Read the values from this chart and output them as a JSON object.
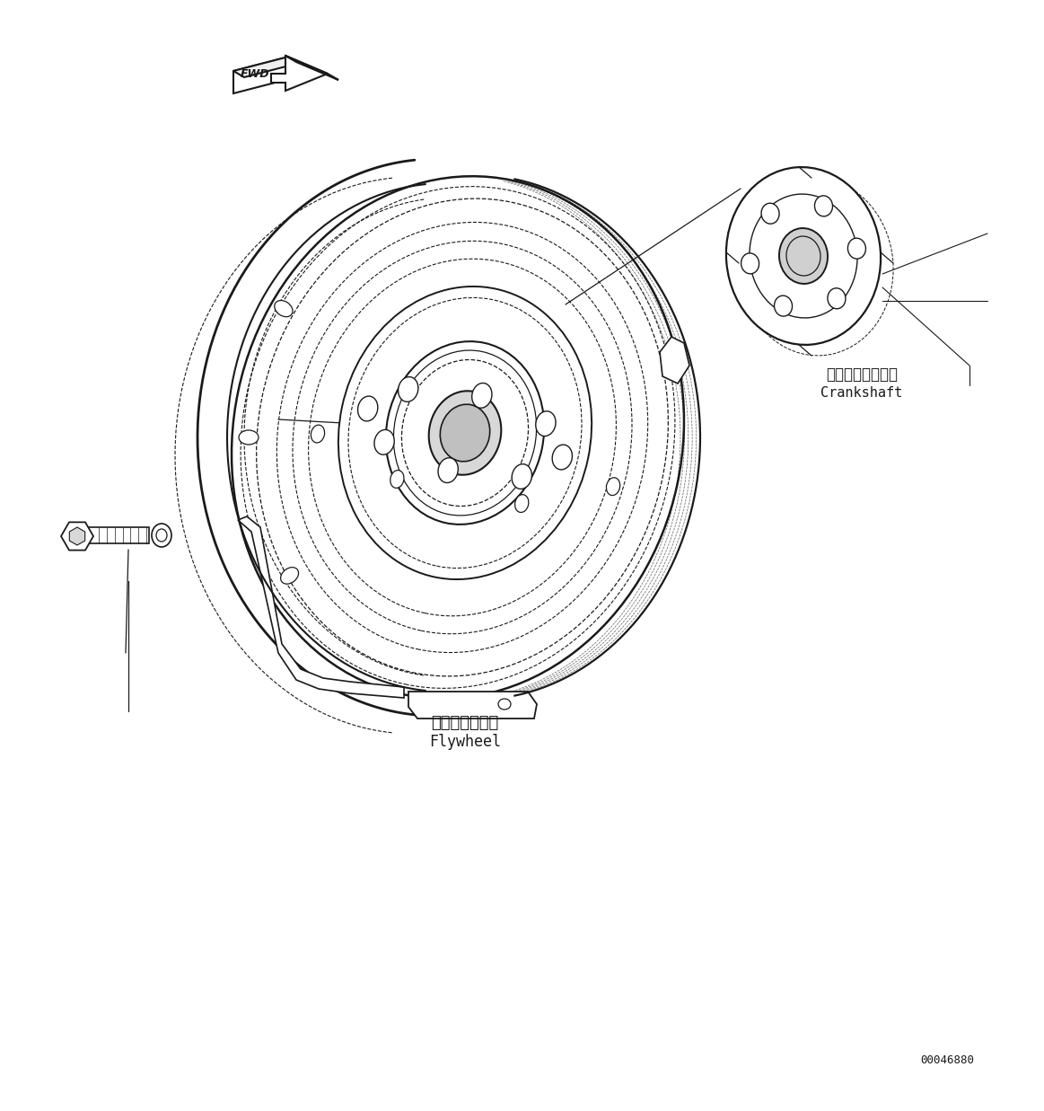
{
  "bg_color": "#ffffff",
  "line_color": "#1a1a1a",
  "label_flywheel_jp": "フライホイール",
  "label_flywheel_en": "Flywheel",
  "label_crankshaft_jp": "クランクシャフト",
  "label_crankshaft_en": "Crankshaft",
  "part_number": "00046880",
  "fwd_label": "FWD",
  "figsize": [
    11.63,
    12.37
  ],
  "dpi": 100
}
